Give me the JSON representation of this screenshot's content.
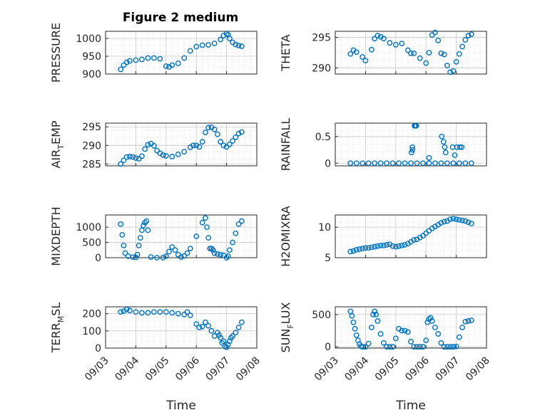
{
  "figure": {
    "title": "Figure 2 medium",
    "marker_color": "#0072BD"
  },
  "chart_data": [
    {
      "type": "scatter",
      "ylabel": "PRESSURE",
      "xlabel": "",
      "xlim": [
        0,
        5
      ],
      "ylim": [
        900,
        1020
      ],
      "yticks": [
        900,
        950,
        1000
      ],
      "xtick_labels": [],
      "x": [
        0.5,
        0.6,
        0.7,
        0.8,
        1.0,
        1.2,
        1.4,
        1.6,
        1.8,
        2.0,
        2.1,
        2.2,
        2.4,
        2.6,
        2.8,
        3.0,
        3.2,
        3.4,
        3.6,
        3.8,
        3.9,
        4.0,
        4.05,
        4.1,
        4.2,
        4.3,
        4.4,
        4.5
      ],
      "y": [
        913,
        925,
        933,
        937,
        939,
        941,
        945,
        945,
        943,
        922,
        920,
        925,
        930,
        945,
        965,
        977,
        981,
        982,
        986,
        997,
        1008,
        1013,
        1010,
        1000,
        989,
        983,
        980,
        978
      ]
    },
    {
      "type": "scatter",
      "ylabel": "THETA",
      "xlabel": "",
      "xlim": [
        0,
        5
      ],
      "ylim": [
        289,
        296
      ],
      "yticks": [
        290,
        295
      ],
      "xtick_labels": [],
      "x": [
        0.5,
        0.6,
        0.7,
        0.9,
        1.0,
        1.2,
        1.3,
        1.4,
        1.5,
        1.6,
        1.8,
        2.0,
        2.2,
        2.4,
        2.5,
        2.6,
        2.8,
        3.0,
        3.1,
        3.2,
        3.3,
        3.4,
        3.5,
        3.6,
        3.7,
        3.8,
        3.9,
        4.0,
        4.1,
        4.2,
        4.3,
        4.4,
        4.5
      ],
      "y": [
        292.3,
        292.9,
        292.6,
        291.8,
        291.2,
        293.0,
        294.8,
        295.3,
        295.1,
        294.8,
        294.1,
        293.8,
        294.0,
        292.9,
        292.4,
        292.4,
        291.6,
        290.8,
        292.5,
        295.4,
        295.8,
        294.5,
        292.4,
        292.2,
        290.4,
        289.3,
        289.5,
        291.0,
        292.3,
        293.5,
        294.6,
        295.3,
        295.5
      ]
    },
    {
      "type": "scatter",
      "ylabel": "AIR_TEMP",
      "xlabel": "",
      "xlim": [
        0,
        5
      ],
      "ylim": [
        284.5,
        296
      ],
      "yticks": [
        285,
        290,
        295
      ],
      "xtick_labels": [],
      "x": [
        0.5,
        0.6,
        0.7,
        0.8,
        0.9,
        1.0,
        1.1,
        1.2,
        1.3,
        1.4,
        1.5,
        1.6,
        1.7,
        1.8,
        1.9,
        2.0,
        2.2,
        2.4,
        2.6,
        2.8,
        2.9,
        3.0,
        3.1,
        3.2,
        3.3,
        3.4,
        3.5,
        3.6,
        3.7,
        3.8,
        3.9,
        4.0,
        4.1,
        4.2,
        4.3,
        4.4,
        4.5
      ],
      "y": [
        285.0,
        286.0,
        286.9,
        287.0,
        286.9,
        286.6,
        286.4,
        287.1,
        289.0,
        290.2,
        290.5,
        289.9,
        288.6,
        287.9,
        287.4,
        287.2,
        287.0,
        287.6,
        288.3,
        289.5,
        290.0,
        290.0,
        289.6,
        291.0,
        293.5,
        294.8,
        294.9,
        294.3,
        293.0,
        291.0,
        290.0,
        289.6,
        290.3,
        291.2,
        292.2,
        293.2,
        293.6
      ]
    },
    {
      "type": "scatter",
      "ylabel": "RAINFALL",
      "xlabel": "",
      "xlim": [
        0,
        5
      ],
      "ylim": [
        -0.05,
        0.75
      ],
      "yticks": [
        0,
        0.5
      ],
      "xtick_labels": [],
      "x": [
        0.5,
        0.7,
        0.9,
        1.1,
        1.3,
        1.5,
        1.7,
        1.9,
        2.1,
        2.3,
        2.5,
        2.7,
        2.9,
        3.1,
        3.3,
        3.5,
        3.7,
        3.9,
        4.1,
        4.3,
        4.5,
        2.55,
        2.62,
        2.65,
        2.68,
        2.52,
        2.55,
        3.1,
        3.52,
        3.58,
        3.62,
        3.65,
        3.88,
        3.95,
        4.02,
        4.12,
        4.18
      ],
      "y": [
        0,
        0,
        0,
        0,
        0,
        0,
        0,
        0,
        0,
        0,
        0,
        0,
        0,
        0,
        0,
        0,
        0,
        0,
        0,
        0,
        0,
        0.3,
        0.7,
        0.7,
        0.7,
        0.2,
        0.25,
        0.1,
        0.5,
        0.4,
        0.3,
        0.2,
        0.3,
        0.15,
        0.3,
        0.3,
        0.3
      ]
    },
    {
      "type": "scatter",
      "ylabel": "MIXDEPTH",
      "xlabel": "",
      "xlim": [
        0,
        5
      ],
      "ylim": [
        0,
        1400
      ],
      "yticks": [
        0,
        500,
        1000
      ],
      "xtick_labels": [],
      "x": [
        0.5,
        0.55,
        0.6,
        0.65,
        0.75,
        0.9,
        1.0,
        1.05,
        1.1,
        1.15,
        1.2,
        1.25,
        1.3,
        1.35,
        1.4,
        1.5,
        1.7,
        1.9,
        2.0,
        2.1,
        2.2,
        2.3,
        2.4,
        2.5,
        2.6,
        2.7,
        2.8,
        3.0,
        3.2,
        3.3,
        3.35,
        3.4,
        3.45,
        3.5,
        3.55,
        3.6,
        3.7,
        3.8,
        3.9,
        4.0,
        4.05,
        4.1,
        4.2,
        4.3,
        4.4,
        4.5
      ],
      "y": [
        1100,
        750,
        400,
        150,
        50,
        20,
        10,
        100,
        400,
        650,
        900,
        1050,
        1150,
        1200,
        900,
        20,
        0,
        0,
        50,
        200,
        350,
        250,
        100,
        20,
        60,
        150,
        300,
        700,
        1150,
        1300,
        1000,
        650,
        300,
        300,
        250,
        150,
        120,
        100,
        80,
        0,
        50,
        250,
        500,
        800,
        1100,
        1200
      ]
    },
    {
      "type": "scatter",
      "ylabel": "H2OMIXRA",
      "xlabel": "",
      "xlim": [
        0,
        5
      ],
      "ylim": [
        5,
        12
      ],
      "yticks": [
        5,
        10
      ],
      "xtick_labels": [],
      "x": [
        0.5,
        0.6,
        0.7,
        0.8,
        0.9,
        1.0,
        1.1,
        1.2,
        1.3,
        1.4,
        1.5,
        1.6,
        1.7,
        1.8,
        1.9,
        2.0,
        2.1,
        2.2,
        2.3,
        2.4,
        2.5,
        2.6,
        2.7,
        2.8,
        2.9,
        3.0,
        3.1,
        3.2,
        3.3,
        3.4,
        3.5,
        3.6,
        3.7,
        3.8,
        3.9,
        4.0,
        4.1,
        4.2,
        4.3,
        4.4,
        4.5
      ],
      "y": [
        6.0,
        6.1,
        6.3,
        6.4,
        6.5,
        6.6,
        6.6,
        6.7,
        6.8,
        6.9,
        7.0,
        7.0,
        7.1,
        7.2,
        6.9,
        6.8,
        6.9,
        7.0,
        7.1,
        7.3,
        7.6,
        7.9,
        8.0,
        8.3,
        8.6,
        9.0,
        9.4,
        9.8,
        10.1,
        10.4,
        10.7,
        10.9,
        11.0,
        11.3,
        11.4,
        11.3,
        11.2,
        11.1,
        11.0,
        10.8,
        10.6
      ]
    },
    {
      "type": "scatter",
      "ylabel": "TERR_MSL",
      "xlabel": "Time",
      "xlim": [
        0,
        5
      ],
      "ylim": [
        0,
        240
      ],
      "yticks": [
        0,
        100,
        200
      ],
      "xtick_labels": [
        "09/03",
        "09/04",
        "09/05",
        "09/06",
        "09/07",
        "09/08"
      ],
      "x": [
        0.5,
        0.6,
        0.7,
        0.8,
        1.0,
        1.2,
        1.4,
        1.6,
        1.8,
        2.0,
        2.2,
        2.4,
        2.6,
        2.7,
        2.8,
        3.0,
        3.1,
        3.2,
        3.3,
        3.4,
        3.5,
        3.6,
        3.7,
        3.75,
        3.8,
        3.85,
        3.9,
        3.95,
        4.0,
        4.05,
        4.1,
        4.15,
        4.2,
        4.3,
        4.4,
        4.5
      ],
      "y": [
        210,
        215,
        225,
        218,
        210,
        205,
        205,
        210,
        210,
        210,
        205,
        200,
        195,
        210,
        190,
        140,
        120,
        125,
        150,
        130,
        100,
        70,
        90,
        75,
        60,
        30,
        40,
        10,
        5,
        20,
        40,
        60,
        70,
        90,
        120,
        150
      ]
    },
    {
      "type": "scatter",
      "ylabel": "SUN_FLUX",
      "xlabel": "Time",
      "xlim": [
        0,
        5
      ],
      "ylim": [
        -20,
        620
      ],
      "yticks": [
        0,
        500
      ],
      "xtick_labels": [
        "09/03",
        "09/04",
        "09/05",
        "09/06",
        "09/07",
        "09/08"
      ],
      "x": [
        0.5,
        0.55,
        0.6,
        0.65,
        0.7,
        0.75,
        0.8,
        0.85,
        0.9,
        1.0,
        1.1,
        1.2,
        1.25,
        1.3,
        1.35,
        1.4,
        1.5,
        1.6,
        1.7,
        1.8,
        1.9,
        2.0,
        2.1,
        2.2,
        2.3,
        2.4,
        2.5,
        2.6,
        2.7,
        2.8,
        2.9,
        3.0,
        3.05,
        3.1,
        3.15,
        3.2,
        3.3,
        3.4,
        3.5,
        3.6,
        3.7,
        3.8,
        3.9,
        4.0,
        4.1,
        4.2,
        4.3,
        4.4,
        4.5
      ],
      "y": [
        550,
        480,
        380,
        280,
        180,
        100,
        40,
        10,
        0,
        0,
        50,
        300,
        500,
        550,
        500,
        400,
        200,
        60,
        0,
        0,
        0,
        130,
        280,
        250,
        250,
        230,
        80,
        0,
        0,
        0,
        0,
        100,
        380,
        430,
        450,
        400,
        300,
        200,
        60,
        0,
        0,
        0,
        0,
        5,
        150,
        300,
        390,
        400,
        410
      ]
    }
  ]
}
